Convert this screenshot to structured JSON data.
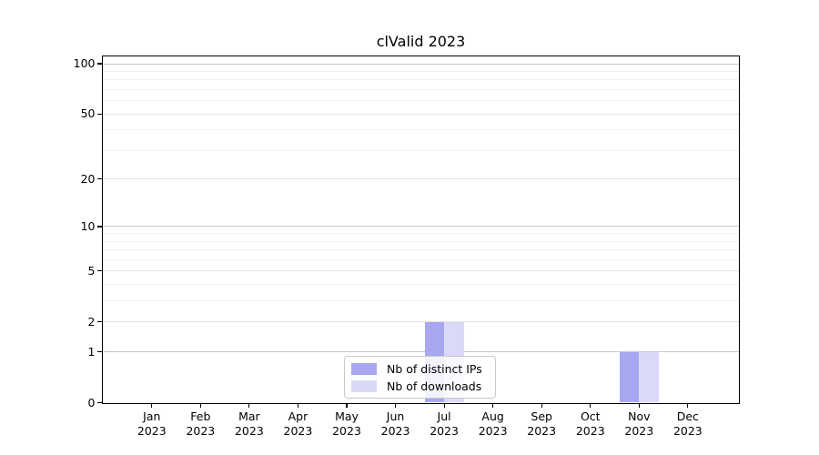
{
  "chart_data": {
    "type": "bar",
    "title": "clValid 2023",
    "categories": [
      "Jan",
      "Feb",
      "Mar",
      "Apr",
      "May",
      "Jun",
      "Jul",
      "Aug",
      "Sep",
      "Oct",
      "Nov",
      "Dec"
    ],
    "category_year": "2023",
    "series": [
      {
        "name": "Nb of distinct IPs",
        "color": "#a7a7f2",
        "values": [
          0,
          0,
          0,
          0,
          0,
          0,
          2,
          0,
          0,
          0,
          1,
          0
        ]
      },
      {
        "name": "Nb of downloads",
        "color": "#dadaf8",
        "values": [
          0,
          0,
          0,
          0,
          0,
          0,
          2,
          0,
          0,
          0,
          1,
          0
        ]
      }
    ],
    "y_scale": "log1p",
    "y_ticks": [
      0,
      1,
      2,
      5,
      10,
      20,
      50,
      100
    ],
    "y_major_emphasis": [
      1,
      10,
      100
    ],
    "y_minor_gridlines": [
      3,
      4,
      6,
      7,
      8,
      9,
      30,
      40,
      60,
      70,
      80,
      90
    ],
    "ylim": [
      0,
      110
    ],
    "xlabel": "",
    "ylabel": "",
    "grid": "on",
    "legend_position": "inside-bottom-center"
  },
  "style": {
    "grid_major_color": "#c8c8c8",
    "grid_mid_color": "#e4e4e4",
    "grid_minor_color": "#f1f1f1",
    "axis_color": "#000000",
    "background_color": "#ffffff"
  }
}
